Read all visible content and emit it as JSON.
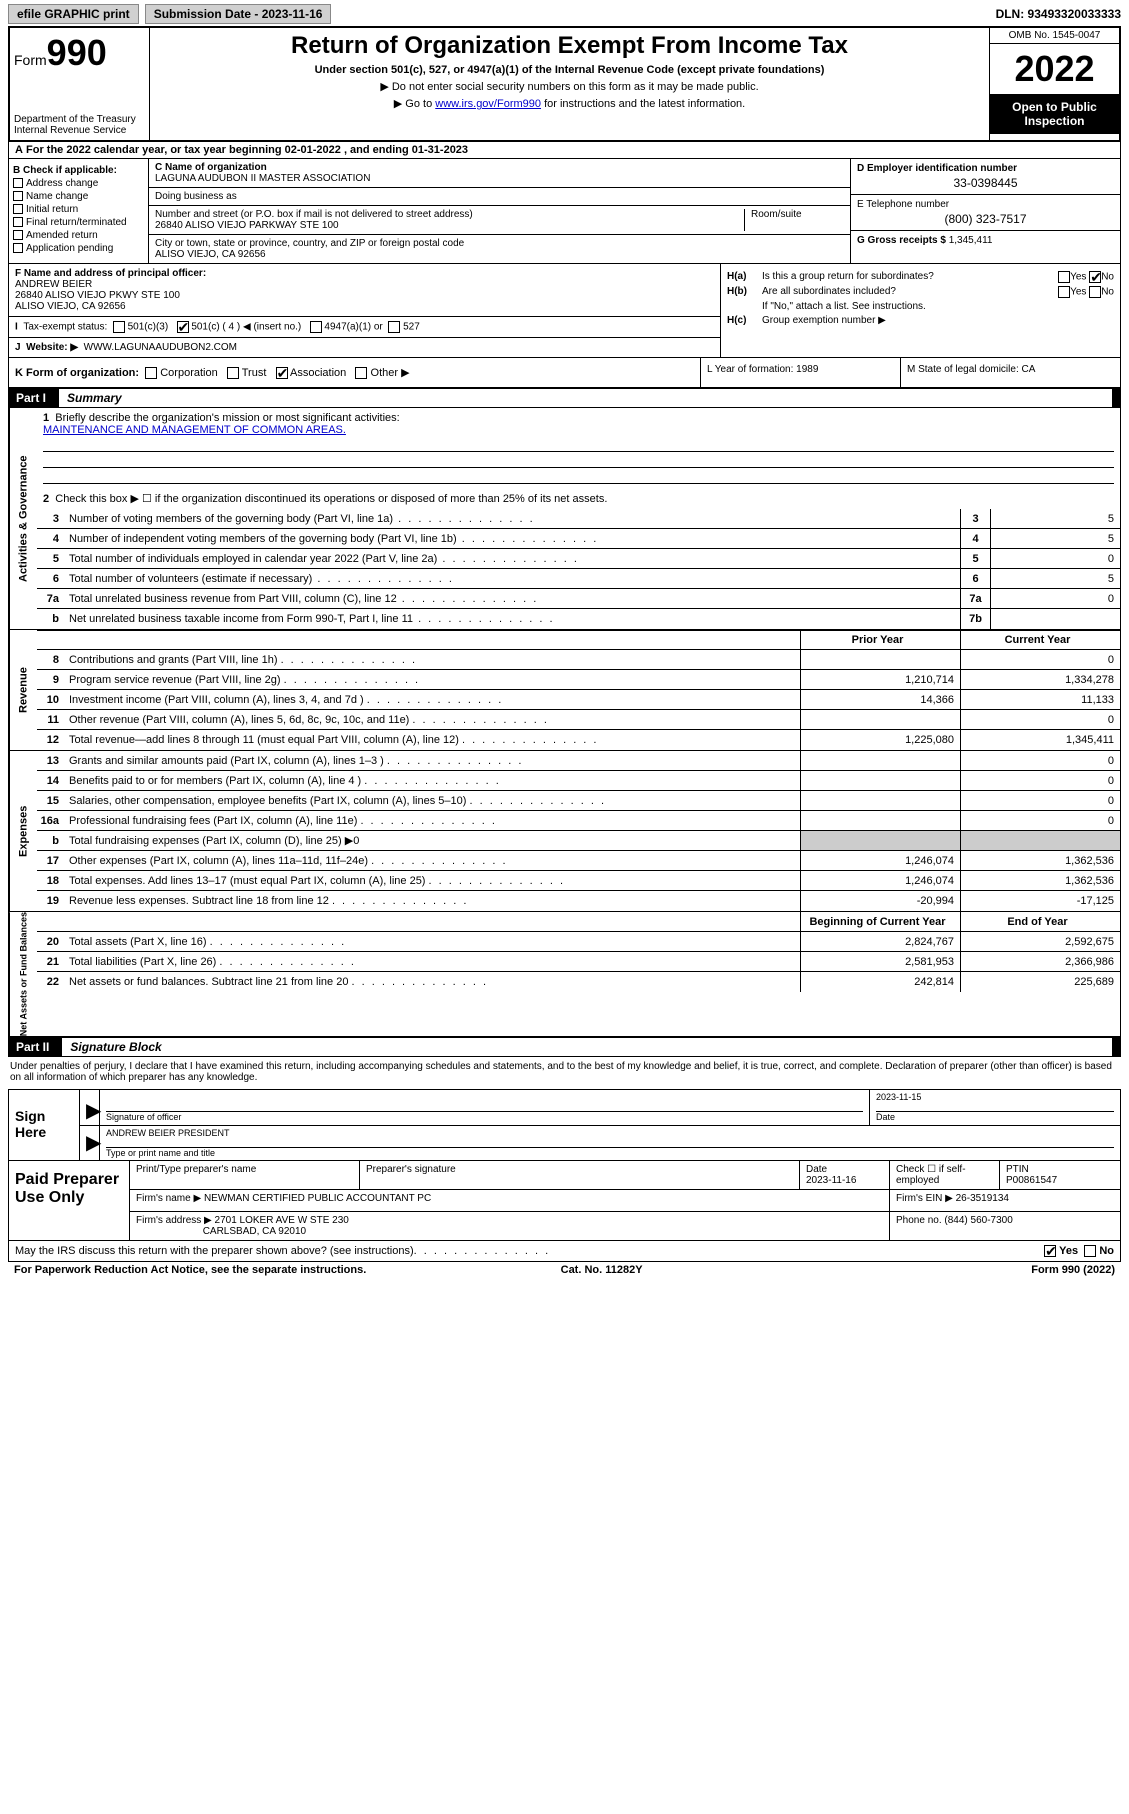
{
  "top": {
    "efile": "efile GRAPHIC print",
    "sub_label": "Submission Date - 2023-11-16",
    "dln": "DLN: 93493320033333"
  },
  "hdr": {
    "form_prefix": "Form",
    "form_num": "990",
    "dept": "Department of the Treasury\nInternal Revenue Service",
    "title": "Return of Organization Exempt From Income Tax",
    "sub": "Under section 501(c), 527, or 4947(a)(1) of the Internal Revenue Code (except private foundations)",
    "note1": "▶ Do not enter social security numbers on this form as it may be made public.",
    "note2_pre": "▶ Go to ",
    "note2_link": "www.irs.gov/Form990",
    "note2_post": " for instructions and the latest information.",
    "omb": "OMB No. 1545-0047",
    "year": "2022",
    "open": "Open to Public Inspection"
  },
  "A": {
    "text": "For the 2022 calendar year, or tax year beginning 02-01-2022   , and ending 01-31-2023"
  },
  "B": {
    "title": "B Check if applicable:",
    "items": [
      "Address change",
      "Name change",
      "Initial return",
      "Final return/terminated",
      "Amended return",
      "Application pending"
    ]
  },
  "C": {
    "name_label": "C Name of organization",
    "name": "LAGUNA AUDUBON II MASTER ASSOCIATION",
    "dba_label": "Doing business as",
    "dba": "",
    "addr_label": "Number and street (or P.O. box if mail is not delivered to street address)",
    "room_label": "Room/suite",
    "addr": "26840 ALISO VIEJO PARKWAY STE 100",
    "city_label": "City or town, state or province, country, and ZIP or foreign postal code",
    "city": "ALISO VIEJO, CA  92656"
  },
  "D": {
    "label": "D Employer identification number",
    "val": "33-0398445"
  },
  "E": {
    "label": "E Telephone number",
    "val": "(800) 323-7517"
  },
  "G": {
    "label": "G Gross receipts $",
    "val": "1,345,411"
  },
  "F": {
    "label": "F Name and address of principal officer:",
    "name": "ANDREW BEIER",
    "addr1": "26840 ALISO VIEJO PKWY STE 100",
    "addr2": "ALISO VIEJO, CA  92656"
  },
  "I": {
    "label": "Tax-exempt status:",
    "opts": [
      "501(c)(3)",
      "501(c) ( 4 ) ◀ (insert no.)",
      "4947(a)(1) or",
      "527"
    ]
  },
  "J": {
    "label": "Website: ▶",
    "val": "WWW.LAGUNAAUDUBON2.COM"
  },
  "H": {
    "a_label": "Is this a group return for subordinates?",
    "b_label": "Are all subordinates included?",
    "b_note": "If \"No,\" attach a list. See instructions.",
    "c_label": "Group exemption number ▶"
  },
  "K": {
    "label": "K Form of organization:",
    "opts": [
      "Corporation",
      "Trust",
      "Association",
      "Other ▶"
    ],
    "L": "L Year of formation: 1989",
    "M": "M State of legal domicile: CA"
  },
  "part1": {
    "num": "Part I",
    "title": "Summary"
  },
  "mission": {
    "q": "Briefly describe the organization's mission or most significant activities:",
    "a": "MAINTENANCE AND MANAGEMENT OF COMMON AREAS."
  },
  "s2": "Check this box ▶ ☐  if the organization discontinued its operations or disposed of more than 25% of its net assets.",
  "lines_gov": [
    {
      "n": "3",
      "t": "Number of voting members of the governing body (Part VI, line 1a)",
      "b": "3",
      "v": "5"
    },
    {
      "n": "4",
      "t": "Number of independent voting members of the governing body (Part VI, line 1b)",
      "b": "4",
      "v": "5"
    },
    {
      "n": "5",
      "t": "Total number of individuals employed in calendar year 2022 (Part V, line 2a)",
      "b": "5",
      "v": "0"
    },
    {
      "n": "6",
      "t": "Total number of volunteers (estimate if necessary)",
      "b": "6",
      "v": "5"
    },
    {
      "n": "7a",
      "t": "Total unrelated business revenue from Part VIII, column (C), line 12",
      "b": "7a",
      "v": "0"
    },
    {
      "n": "b",
      "t": "Net unrelated business taxable income from Form 990-T, Part I, line 11",
      "b": "7b",
      "v": ""
    }
  ],
  "col_hdr": {
    "py": "Prior Year",
    "cy": "Current Year"
  },
  "lines_rev": [
    {
      "n": "8",
      "t": "Contributions and grants (Part VIII, line 1h)",
      "py": "",
      "cy": "0"
    },
    {
      "n": "9",
      "t": "Program service revenue (Part VIII, line 2g)",
      "py": "1,210,714",
      "cy": "1,334,278"
    },
    {
      "n": "10",
      "t": "Investment income (Part VIII, column (A), lines 3, 4, and 7d )",
      "py": "14,366",
      "cy": "11,133"
    },
    {
      "n": "11",
      "t": "Other revenue (Part VIII, column (A), lines 5, 6d, 8c, 9c, 10c, and 11e)",
      "py": "",
      "cy": "0"
    },
    {
      "n": "12",
      "t": "Total revenue—add lines 8 through 11 (must equal Part VIII, column (A), line 12)",
      "py": "1,225,080",
      "cy": "1,345,411"
    }
  ],
  "lines_exp": [
    {
      "n": "13",
      "t": "Grants and similar amounts paid (Part IX, column (A), lines 1–3 )",
      "py": "",
      "cy": "0"
    },
    {
      "n": "14",
      "t": "Benefits paid to or for members (Part IX, column (A), line 4 )",
      "py": "",
      "cy": "0"
    },
    {
      "n": "15",
      "t": "Salaries, other compensation, employee benefits (Part IX, column (A), lines 5–10)",
      "py": "",
      "cy": "0"
    },
    {
      "n": "16a",
      "t": "Professional fundraising fees (Part IX, column (A), line 11e)",
      "py": "",
      "cy": "0"
    },
    {
      "n": "b",
      "t": "Total fundraising expenses (Part IX, column (D), line 25) ▶0",
      "py": "shade",
      "cy": "shade"
    },
    {
      "n": "17",
      "t": "Other expenses (Part IX, column (A), lines 11a–11d, 11f–24e)",
      "py": "1,246,074",
      "cy": "1,362,536"
    },
    {
      "n": "18",
      "t": "Total expenses. Add lines 13–17 (must equal Part IX, column (A), line 25)",
      "py": "1,246,074",
      "cy": "1,362,536"
    },
    {
      "n": "19",
      "t": "Revenue less expenses. Subtract line 18 from line 12",
      "py": "-20,994",
      "cy": "-17,125"
    }
  ],
  "col_hdr2": {
    "py": "Beginning of Current Year",
    "cy": "End of Year"
  },
  "lines_net": [
    {
      "n": "20",
      "t": "Total assets (Part X, line 16)",
      "py": "2,824,767",
      "cy": "2,592,675"
    },
    {
      "n": "21",
      "t": "Total liabilities (Part X, line 26)",
      "py": "2,581,953",
      "cy": "2,366,986"
    },
    {
      "n": "22",
      "t": "Net assets or fund balances. Subtract line 21 from line 20",
      "py": "242,814",
      "cy": "225,689"
    }
  ],
  "vtabs": {
    "gov": "Activities & Governance",
    "rev": "Revenue",
    "exp": "Expenses",
    "net": "Net Assets or Fund Balances"
  },
  "part2": {
    "num": "Part II",
    "title": "Signature Block"
  },
  "penalty": "Under penalties of perjury, I declare that I have examined this return, including accompanying schedules and statements, and to the best of my knowledge and belief, it is true, correct, and complete. Declaration of preparer (other than officer) is based on all information of which preparer has any knowledge.",
  "sign": {
    "here": "Sign Here",
    "sig_label": "Signature of officer",
    "date_label": "Date",
    "date": "2023-11-15",
    "name": "ANDREW BEIER PRESIDENT",
    "name_label": "Type or print name and title"
  },
  "paid": {
    "title": "Paid Preparer Use Only",
    "h": [
      "Print/Type preparer's name",
      "Preparer's signature",
      "Date",
      "Check ☐ if self-employed",
      "PTIN"
    ],
    "date": "2023-11-16",
    "ptin": "P00861547",
    "firm_label": "Firm's name    ▶",
    "firm": "NEWMAN CERTIFIED PUBLIC ACCOUNTANT PC",
    "ein_label": "Firm's EIN ▶",
    "ein": "26-3519134",
    "addr_label": "Firm's address ▶",
    "addr1": "2701 LOKER AVE W STE 230",
    "addr2": "CARLSBAD, CA  92010",
    "phone_label": "Phone no.",
    "phone": "(844) 560-7300"
  },
  "discuss": "May the IRS discuss this return with the preparer shown above? (see instructions)",
  "footer": {
    "l": "For Paperwork Reduction Act Notice, see the separate instructions.",
    "m": "Cat. No. 11282Y",
    "r": "Form 990 (2022)"
  }
}
